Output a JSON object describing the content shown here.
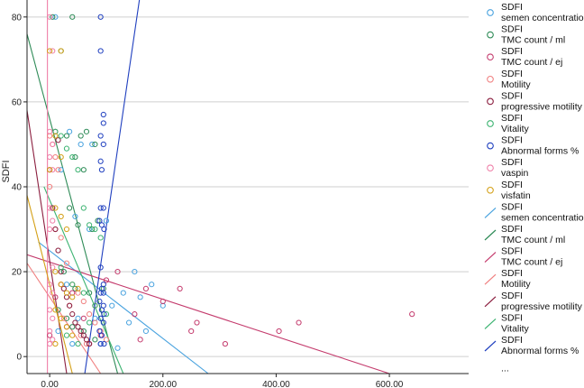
{
  "chart_data": {
    "type": "scatter",
    "ylabel": "SDFI",
    "xlabel": "",
    "xlim": [
      -40,
      740
    ],
    "ylim": [
      -4,
      84
    ],
    "x_ticks": [
      0,
      200,
      400,
      600
    ],
    "x_tick_labels": [
      "0.00",
      "200.00",
      "400.00",
      "600.00"
    ],
    "y_ticks": [
      0,
      20,
      40,
      60,
      80
    ],
    "y_tick_labels": [
      "0",
      "20",
      "40",
      "60",
      "80"
    ],
    "grid": "horizontal",
    "legend_position": "right",
    "legend_more": "...",
    "series": [
      {
        "name": "semen concentration",
        "prefix": "SDFI",
        "color": "#4aa3df",
        "points": [
          [
            10,
            80
          ],
          [
            35,
            53
          ],
          [
            55,
            50
          ],
          [
            75,
            50
          ],
          [
            100,
            32
          ],
          [
            150,
            20
          ],
          [
            130,
            15
          ],
          [
            180,
            17
          ],
          [
            160,
            14
          ],
          [
            200,
            12
          ],
          [
            110,
            12
          ],
          [
            80,
            9
          ],
          [
            140,
            8
          ],
          [
            170,
            6
          ],
          [
            60,
            5
          ],
          [
            40,
            3
          ],
          [
            90,
            3
          ],
          [
            120,
            2
          ],
          [
            20,
            44
          ],
          [
            45,
            33
          ],
          [
            70,
            30
          ],
          [
            30,
            17
          ],
          [
            50,
            9
          ],
          [
            15,
            6
          ]
        ],
        "fit": [
          [
            -20,
            27
          ],
          [
            280,
            -4
          ]
        ]
      },
      {
        "name": "TMC count / ml",
        "prefix": "SDFI",
        "color": "#2e8b57",
        "points": [
          [
            5,
            80
          ],
          [
            40,
            80
          ],
          [
            20,
            72
          ],
          [
            30,
            52
          ],
          [
            55,
            52
          ],
          [
            65,
            53
          ],
          [
            45,
            47
          ],
          [
            60,
            44
          ],
          [
            80,
            50
          ],
          [
            35,
            35
          ],
          [
            50,
            31
          ],
          [
            75,
            30
          ],
          [
            85,
            32
          ],
          [
            25,
            20
          ],
          [
            45,
            16
          ],
          [
            70,
            15
          ],
          [
            95,
            16
          ],
          [
            30,
            9
          ],
          [
            60,
            6
          ],
          [
            80,
            4
          ],
          [
            15,
            11
          ],
          [
            40,
            7
          ]
        ],
        "fit": [
          [
            -40,
            76
          ],
          [
            120,
            -4
          ]
        ]
      },
      {
        "name": "TMC count / ej",
        "prefix": "SDFI",
        "color": "#c43b6d",
        "points": [
          [
            640,
            10
          ],
          [
            440,
            8
          ],
          [
            405,
            6
          ],
          [
            310,
            3
          ],
          [
            260,
            8
          ],
          [
            250,
            6
          ],
          [
            230,
            16
          ],
          [
            200,
            13
          ],
          [
            170,
            16
          ],
          [
            150,
            10
          ],
          [
            120,
            20
          ],
          [
            100,
            18
          ],
          [
            80,
            12
          ],
          [
            60,
            9
          ],
          [
            40,
            15
          ],
          [
            20,
            17
          ],
          [
            0,
            5
          ],
          [
            10,
            14
          ],
          [
            30,
            7
          ],
          [
            90,
            5
          ],
          [
            70,
            3
          ],
          [
            160,
            4
          ]
        ],
        "fit": [
          [
            -40,
            24
          ],
          [
            600,
            -4
          ]
        ]
      },
      {
        "name": "Motility",
        "prefix": "SDFI",
        "color": "#f08080",
        "points": [
          [
            0,
            52
          ],
          [
            5,
            50
          ],
          [
            10,
            47
          ],
          [
            15,
            44
          ],
          [
            0,
            40
          ],
          [
            5,
            35
          ],
          [
            10,
            30
          ],
          [
            20,
            28
          ],
          [
            30,
            22
          ],
          [
            40,
            17
          ],
          [
            50,
            15
          ],
          [
            60,
            13
          ],
          [
            70,
            10
          ],
          [
            80,
            8
          ],
          [
            90,
            6
          ],
          [
            100,
            4
          ],
          [
            55,
            5
          ],
          [
            35,
            12
          ],
          [
            25,
            9
          ],
          [
            65,
            3
          ]
        ],
        "fit": [
          [
            -40,
            22
          ],
          [
            90,
            -4
          ]
        ]
      },
      {
        "name": "progressive motility",
        "prefix": "SDFI",
        "color": "#8b1e3f",
        "points": [
          [
            0,
            44
          ],
          [
            5,
            35
          ],
          [
            10,
            30
          ],
          [
            15,
            25
          ],
          [
            20,
            20
          ],
          [
            25,
            16
          ],
          [
            30,
            14
          ],
          [
            35,
            12
          ],
          [
            40,
            10
          ],
          [
            45,
            8
          ],
          [
            50,
            7
          ],
          [
            55,
            6
          ],
          [
            60,
            5
          ],
          [
            65,
            4
          ],
          [
            70,
            3
          ],
          [
            10,
            53
          ],
          [
            15,
            51
          ]
        ],
        "fit": [
          [
            -40,
            58
          ],
          [
            30,
            -4
          ]
        ]
      },
      {
        "name": "Vitality",
        "prefix": "SDFI",
        "color": "#3cb371",
        "points": [
          [
            10,
            53
          ],
          [
            20,
            52
          ],
          [
            30,
            49
          ],
          [
            40,
            47
          ],
          [
            50,
            44
          ],
          [
            60,
            35
          ],
          [
            70,
            31
          ],
          [
            80,
            30
          ],
          [
            90,
            28
          ],
          [
            20,
            21
          ],
          [
            40,
            17
          ],
          [
            60,
            15
          ],
          [
            80,
            12
          ],
          [
            100,
            10
          ],
          [
            30,
            5
          ],
          [
            50,
            3
          ],
          [
            70,
            8
          ]
        ],
        "fit": [
          [
            -10,
            40
          ],
          [
            130,
            -4
          ]
        ]
      },
      {
        "name": "Abnormal forms %",
        "prefix": "SDFI",
        "color": "#1f3fbf",
        "points": [
          [
            90,
            80
          ],
          [
            90,
            72
          ],
          [
            95,
            57
          ],
          [
            95,
            55
          ],
          [
            90,
            52
          ],
          [
            95,
            50
          ],
          [
            90,
            46
          ],
          [
            92,
            44
          ],
          [
            90,
            35
          ],
          [
            95,
            35
          ],
          [
            88,
            32
          ],
          [
            92,
            31
          ],
          [
            96,
            30
          ],
          [
            90,
            21
          ],
          [
            95,
            17
          ],
          [
            90,
            15
          ],
          [
            95,
            15
          ],
          [
            88,
            13
          ],
          [
            92,
            11
          ],
          [
            96,
            10
          ],
          [
            90,
            9
          ],
          [
            95,
            8
          ],
          [
            88,
            6
          ],
          [
            92,
            5
          ],
          [
            96,
            3
          ],
          [
            90,
            3
          ],
          [
            95,
            12
          ],
          [
            92,
            16
          ]
        ],
        "fit": [
          [
            62,
            -4
          ],
          [
            165,
            90
          ]
        ]
      },
      {
        "name": "vaspin",
        "prefix": "SDFI",
        "color": "#ef7fa8",
        "points": [
          [
            0,
            80
          ],
          [
            5,
            72
          ],
          [
            0,
            53
          ],
          [
            5,
            50
          ],
          [
            0,
            47
          ],
          [
            5,
            44
          ],
          [
            0,
            35
          ],
          [
            5,
            32
          ],
          [
            0,
            30
          ],
          [
            5,
            21
          ],
          [
            0,
            17
          ],
          [
            5,
            15
          ],
          [
            0,
            11
          ],
          [
            5,
            9
          ],
          [
            0,
            6
          ],
          [
            5,
            4
          ],
          [
            0,
            3
          ]
        ],
        "fit": [
          [
            -4,
            90
          ],
          [
            -4,
            -4
          ]
        ]
      },
      {
        "name": "visfatin",
        "prefix": "SDFI",
        "color": "#d4a017",
        "points": [
          [
            0,
            72
          ],
          [
            20,
            72
          ],
          [
            10,
            52
          ],
          [
            20,
            47
          ],
          [
            0,
            44
          ],
          [
            10,
            35
          ],
          [
            20,
            33
          ],
          [
            30,
            30
          ],
          [
            10,
            20
          ],
          [
            20,
            17
          ],
          [
            30,
            15
          ],
          [
            40,
            14
          ],
          [
            10,
            11
          ],
          [
            20,
            9
          ],
          [
            30,
            7
          ],
          [
            40,
            5
          ],
          [
            10,
            3
          ],
          [
            50,
            16
          ]
        ],
        "fit": [
          [
            -40,
            38
          ],
          [
            40,
            -4
          ]
        ]
      }
    ]
  }
}
